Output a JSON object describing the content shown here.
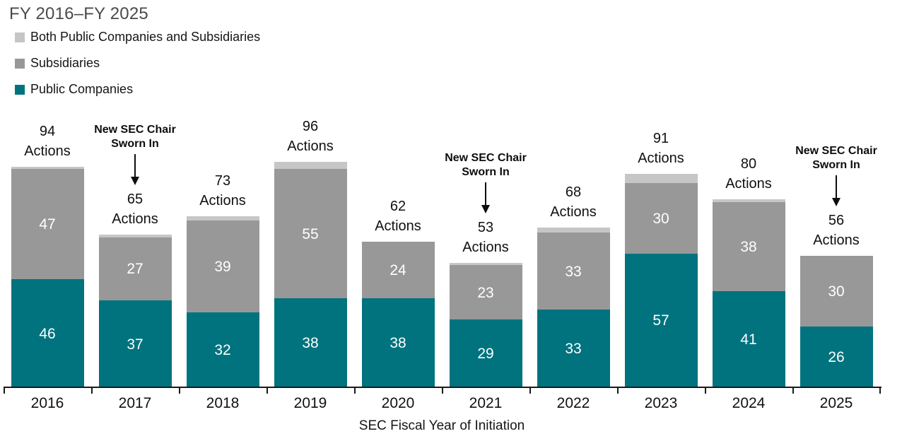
{
  "title": "FY 2016–FY 2025",
  "legend": {
    "items": [
      {
        "label": "Both Public Companies and Subsidiaries",
        "color": "#c6c6c6"
      },
      {
        "label": "Subsidiaries",
        "color": "#989898"
      },
      {
        "label": "Public Companies",
        "color": "#00737e"
      }
    ]
  },
  "chart_data": {
    "type": "bar",
    "stacked": true,
    "title": "FY 2016–FY 2025",
    "xlabel": "SEC Fiscal Year of Initiation",
    "ylabel": "",
    "ylim": [
      0,
      100
    ],
    "grid": false,
    "legend_position": "top-left",
    "categories": [
      "2016",
      "2017",
      "2018",
      "2019",
      "2020",
      "2021",
      "2022",
      "2023",
      "2024",
      "2025"
    ],
    "series": [
      {
        "name": "Public Companies",
        "color": "#00737e",
        "label_color": "#ffffff",
        "show_labels": true,
        "values": [
          46,
          37,
          32,
          38,
          38,
          29,
          33,
          57,
          41,
          26
        ]
      },
      {
        "name": "Subsidiaries",
        "color": "#989898",
        "label_color": "#ffffff",
        "show_labels": true,
        "values": [
          47,
          27,
          39,
          55,
          24,
          23,
          33,
          30,
          38,
          30
        ]
      },
      {
        "name": "Both Public Companies and Subsidiaries",
        "color": "#c6c6c6",
        "label_color": "#ffffff",
        "show_labels": false,
        "values": [
          1,
          1,
          2,
          3,
          0,
          1,
          2,
          4,
          1,
          0
        ]
      }
    ],
    "totals": [
      94,
      65,
      73,
      96,
      62,
      53,
      68,
      91,
      80,
      56
    ],
    "total_label_suffix": "Actions",
    "annotations": [
      {
        "category": "2017",
        "lines": [
          "New SEC Chair",
          "Sworn In"
        ]
      },
      {
        "category": "2021",
        "lines": [
          "New SEC Chair",
          "Sworn In"
        ]
      },
      {
        "category": "2025",
        "lines": [
          "New SEC Chair",
          "Sworn In"
        ]
      }
    ]
  }
}
